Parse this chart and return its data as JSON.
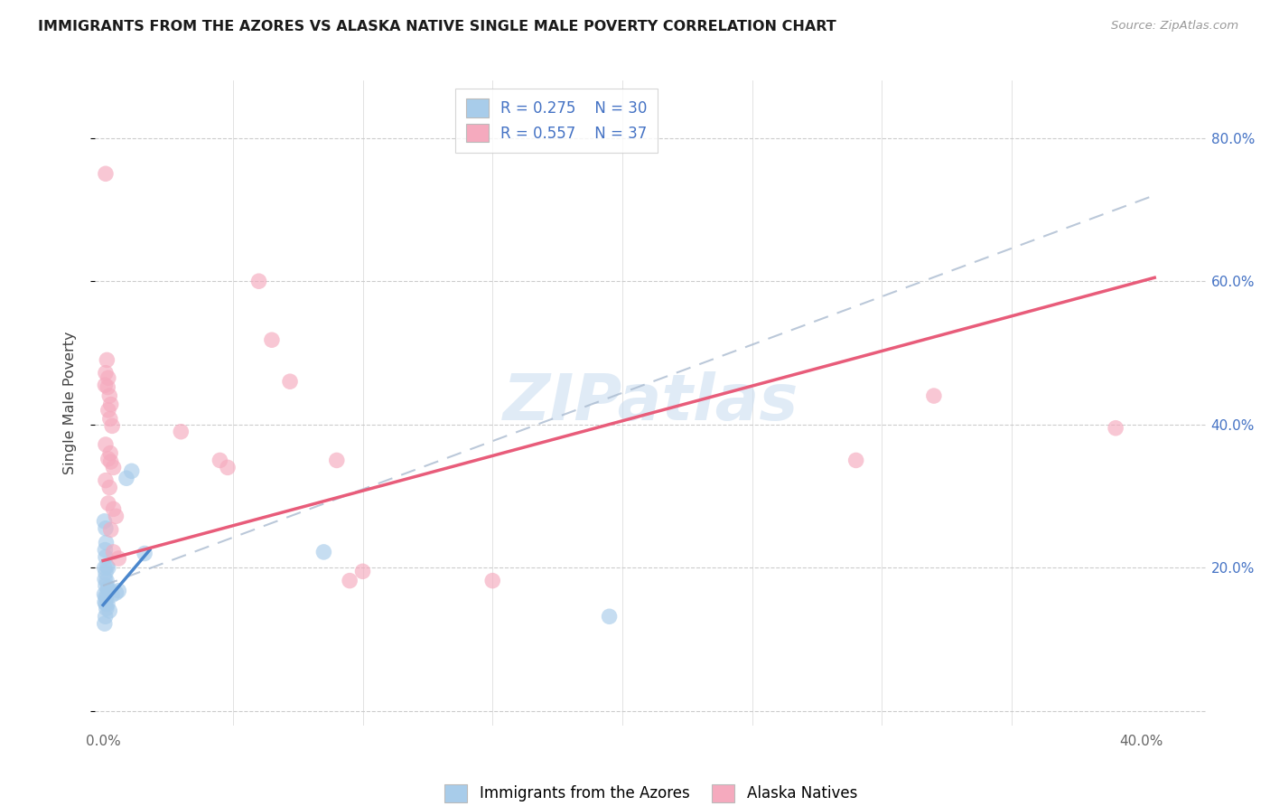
{
  "title": "IMMIGRANTS FROM THE AZORES VS ALASKA NATIVE SINGLE MALE POVERTY CORRELATION CHART",
  "source": "Source: ZipAtlas.com",
  "ylabel": "Single Male Poverty",
  "xlim": [
    -0.003,
    0.425
  ],
  "ylim": [
    -0.02,
    0.88
  ],
  "blue_color": "#A8CCEA",
  "pink_color": "#F5AABE",
  "line_blue_color": "#4A86CC",
  "line_pink_color": "#E85C7A",
  "dash_color": "#AABBD0",
  "watermark_color": "#C8DCF0",
  "blue_scatter": [
    [
      0.0005,
      0.265
    ],
    [
      0.001,
      0.255
    ],
    [
      0.0008,
      0.225
    ],
    [
      0.0012,
      0.235
    ],
    [
      0.001,
      0.215
    ],
    [
      0.0006,
      0.2
    ],
    [
      0.0015,
      0.202
    ],
    [
      0.002,
      0.2
    ],
    [
      0.001,
      0.193
    ],
    [
      0.0007,
      0.184
    ],
    [
      0.0014,
      0.182
    ],
    [
      0.001,
      0.175
    ],
    [
      0.002,
      0.172
    ],
    [
      0.0018,
      0.17
    ],
    [
      0.0005,
      0.163
    ],
    [
      0.001,
      0.16
    ],
    [
      0.0012,
      0.158
    ],
    [
      0.0007,
      0.152
    ],
    [
      0.001,
      0.15
    ],
    [
      0.0017,
      0.149
    ],
    [
      0.0013,
      0.143
    ],
    [
      0.0009,
      0.132
    ],
    [
      0.0006,
      0.122
    ],
    [
      0.0025,
      0.14
    ],
    [
      0.005,
      0.165
    ],
    [
      0.006,
      0.168
    ],
    [
      0.0035,
      0.162
    ],
    [
      0.009,
      0.325
    ],
    [
      0.011,
      0.335
    ],
    [
      0.016,
      0.22
    ],
    [
      0.085,
      0.222
    ],
    [
      0.195,
      0.132
    ]
  ],
  "pink_scatter": [
    [
      0.001,
      0.75
    ],
    [
      0.0008,
      0.455
    ],
    [
      0.001,
      0.472
    ],
    [
      0.0015,
      0.49
    ],
    [
      0.002,
      0.465
    ],
    [
      0.0018,
      0.452
    ],
    [
      0.0025,
      0.44
    ],
    [
      0.003,
      0.428
    ],
    [
      0.002,
      0.42
    ],
    [
      0.0027,
      0.408
    ],
    [
      0.0035,
      0.398
    ],
    [
      0.001,
      0.372
    ],
    [
      0.0028,
      0.36
    ],
    [
      0.002,
      0.352
    ],
    [
      0.003,
      0.348
    ],
    [
      0.004,
      0.34
    ],
    [
      0.001,
      0.322
    ],
    [
      0.0025,
      0.312
    ],
    [
      0.002,
      0.29
    ],
    [
      0.004,
      0.282
    ],
    [
      0.005,
      0.272
    ],
    [
      0.003,
      0.253
    ],
    [
      0.004,
      0.222
    ],
    [
      0.006,
      0.213
    ],
    [
      0.03,
      0.39
    ],
    [
      0.045,
      0.35
    ],
    [
      0.048,
      0.34
    ],
    [
      0.06,
      0.6
    ],
    [
      0.065,
      0.518
    ],
    [
      0.072,
      0.46
    ],
    [
      0.09,
      0.35
    ],
    [
      0.095,
      0.182
    ],
    [
      0.1,
      0.195
    ],
    [
      0.15,
      0.182
    ],
    [
      0.29,
      0.35
    ],
    [
      0.32,
      0.44
    ],
    [
      0.39,
      0.395
    ]
  ],
  "blue_line_x": [
    0.0,
    0.018
  ],
  "blue_line_y": [
    0.148,
    0.225
  ],
  "pink_line_x": [
    0.0,
    0.405
  ],
  "pink_line_y": [
    0.21,
    0.605
  ],
  "dash_line_x": [
    0.0,
    0.405
  ],
  "dash_line_y": [
    0.175,
    0.72
  ]
}
